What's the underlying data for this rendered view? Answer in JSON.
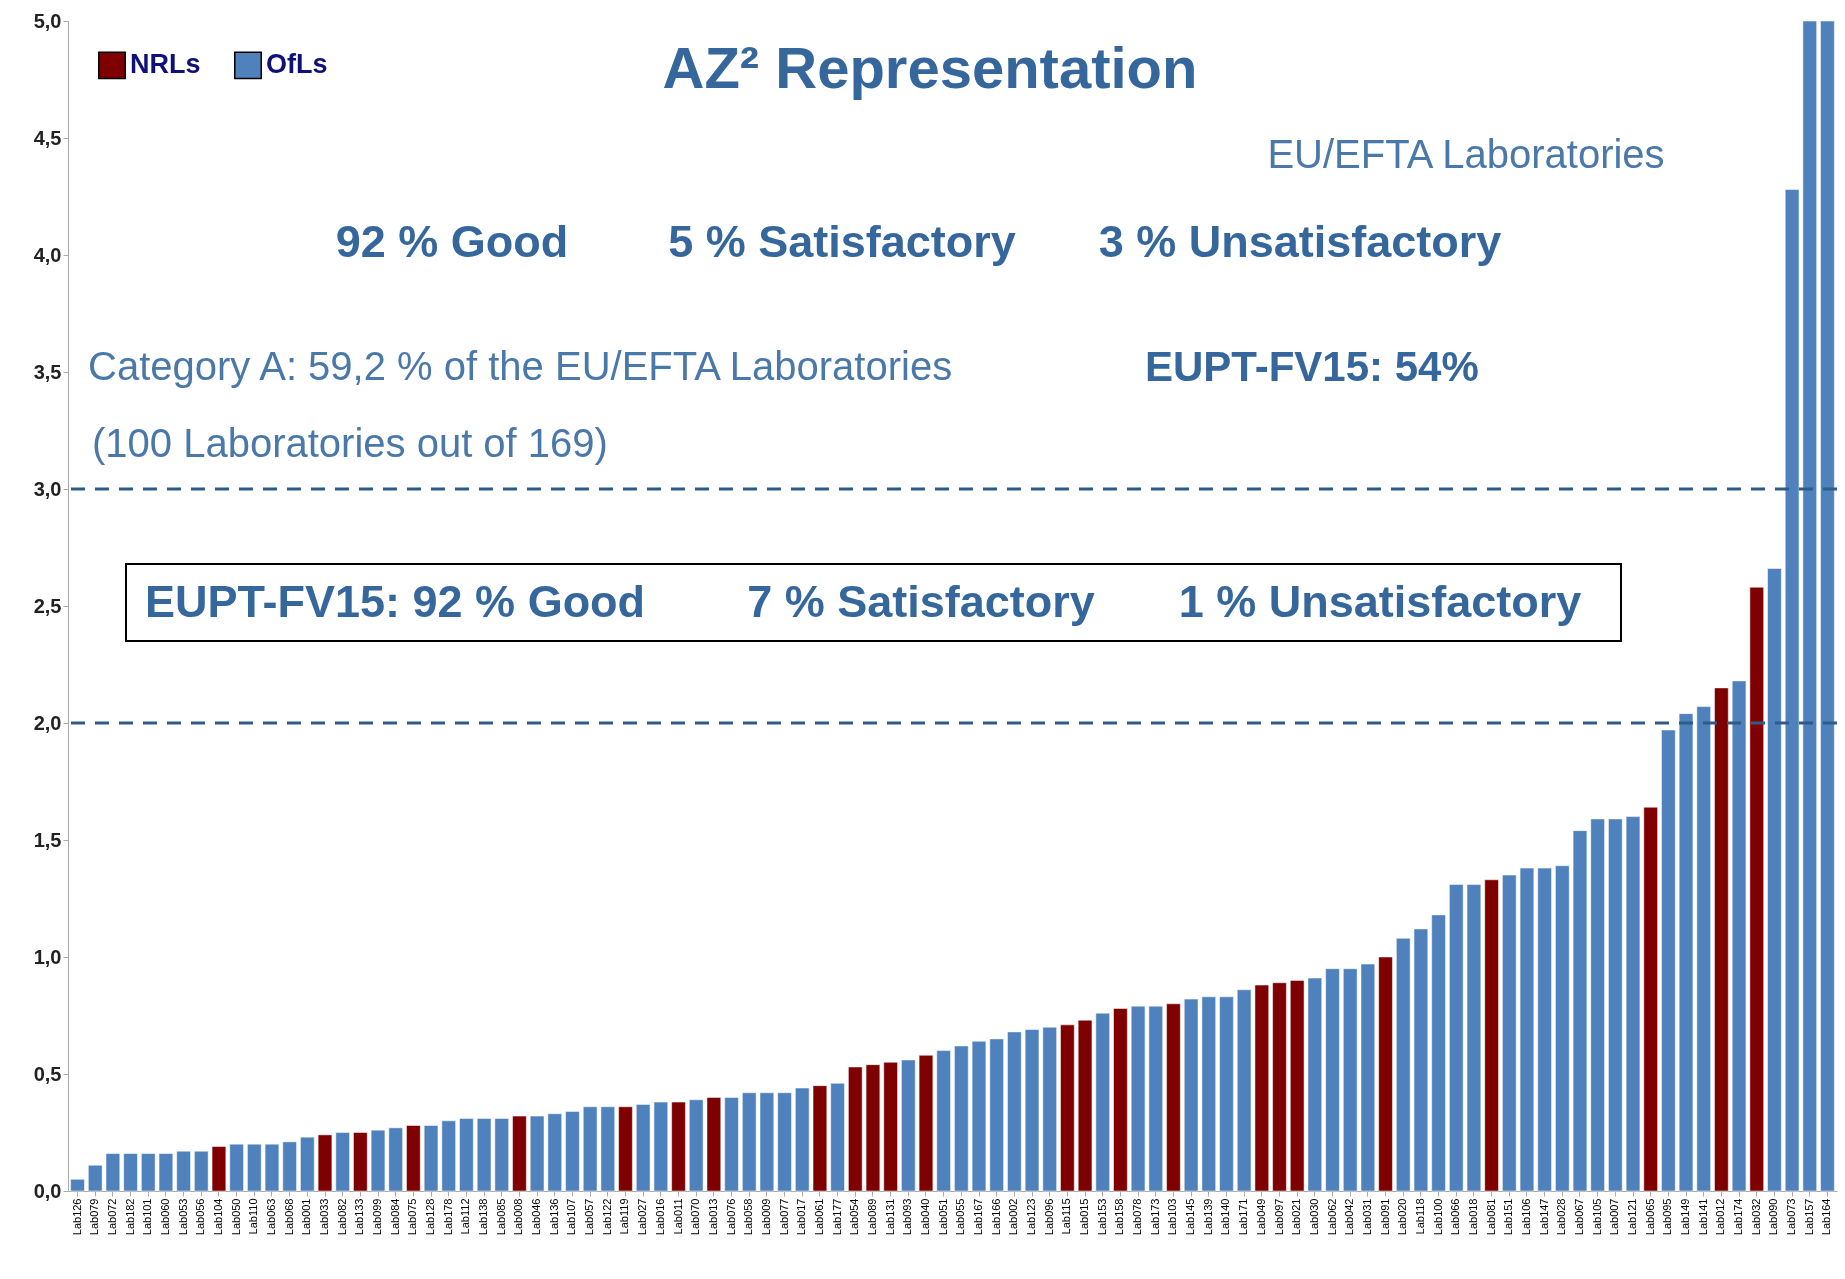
{
  "chart_data": {
    "type": "bar",
    "title": "AZ² Representation",
    "categories": [
      "Lab126",
      "Lab079",
      "Lab072",
      "Lab182",
      "Lab101",
      "Lab060",
      "Lab053",
      "Lab056",
      "Lab104",
      "Lab050",
      "Lab110",
      "Lab063",
      "Lab068",
      "Lab001",
      "Lab033",
      "Lab082",
      "Lab133",
      "Lab099",
      "Lab084",
      "Lab075",
      "Lab128",
      "Lab178",
      "Lab112",
      "Lab138",
      "Lab085",
      "Lab008",
      "Lab046",
      "Lab136",
      "Lab107",
      "Lab057",
      "Lab122",
      "Lab119",
      "Lab027",
      "Lab016",
      "Lab011",
      "Lab070",
      "Lab013",
      "Lab076",
      "Lab058",
      "Lab009",
      "Lab077",
      "Lab017",
      "Lab061",
      "Lab177",
      "Lab054",
      "Lab089",
      "Lab131",
      "Lab093",
      "Lab040",
      "Lab051",
      "Lab055",
      "Lab167",
      "Lab166",
      "Lab002",
      "Lab123",
      "Lab096",
      "Lab115",
      "Lab015",
      "Lab153",
      "Lab158",
      "Lab078",
      "Lab173",
      "Lab103",
      "Lab145",
      "Lab139",
      "Lab140",
      "Lab171",
      "Lab049",
      "Lab097",
      "Lab021",
      "Lab030",
      "Lab062",
      "Lab042",
      "Lab031",
      "Lab091",
      "Lab020",
      "Lab118",
      "Lab100",
      "Lab066",
      "Lab018",
      "Lab081",
      "Lab151",
      "Lab106",
      "Lab147",
      "Lab028",
      "Lab067",
      "Lab105",
      "Lab007",
      "Lab121",
      "Lab065",
      "Lab095",
      "Lab149",
      "Lab141",
      "Lab012",
      "Lab174",
      "Lab032",
      "Lab090",
      "Lab073",
      "Lab157",
      "Lab164"
    ],
    "series": [
      {
        "name": "NRLs",
        "color": "#7f0000",
        "values": [
          null,
          null,
          null,
          null,
          null,
          null,
          null,
          null,
          0.19,
          null,
          null,
          null,
          null,
          null,
          0.24,
          null,
          0.25,
          null,
          null,
          0.28,
          null,
          null,
          null,
          null,
          null,
          0.32,
          null,
          null,
          null,
          null,
          null,
          0.36,
          null,
          null,
          0.38,
          null,
          0.4,
          null,
          null,
          null,
          null,
          null,
          0.45,
          null,
          0.53,
          0.54,
          0.55,
          null,
          0.58,
          null,
          null,
          null,
          null,
          null,
          null,
          null,
          0.71,
          0.73,
          null,
          0.78,
          null,
          null,
          0.8,
          null,
          null,
          null,
          null,
          0.88,
          0.89,
          0.9,
          null,
          null,
          null,
          null,
          1.0,
          null,
          null,
          null,
          null,
          null,
          1.33,
          null,
          null,
          null,
          null,
          null,
          null,
          null,
          null,
          1.64,
          null,
          null,
          null,
          2.15,
          null,
          2.58,
          null,
          null,
          null,
          null
        ]
      },
      {
        "name": "OfLs",
        "color": "#4f81bd",
        "values": [
          0.05,
          0.11,
          0.16,
          0.16,
          0.16,
          0.16,
          0.17,
          0.17,
          null,
          0.2,
          0.2,
          0.2,
          0.21,
          0.23,
          null,
          0.25,
          null,
          0.26,
          0.27,
          null,
          0.28,
          0.3,
          0.31,
          0.31,
          0.31,
          null,
          0.32,
          0.33,
          0.34,
          0.36,
          0.36,
          null,
          0.37,
          0.38,
          null,
          0.39,
          null,
          0.4,
          0.42,
          0.42,
          0.42,
          0.44,
          null,
          0.46,
          null,
          null,
          null,
          0.56,
          null,
          0.6,
          0.62,
          0.64,
          0.65,
          0.68,
          0.69,
          0.7,
          null,
          null,
          0.76,
          null,
          0.79,
          0.79,
          null,
          0.82,
          0.83,
          0.83,
          0.86,
          null,
          null,
          null,
          0.91,
          0.95,
          0.95,
          0.97,
          null,
          1.08,
          1.12,
          1.18,
          1.31,
          1.31,
          null,
          1.35,
          1.38,
          1.38,
          1.39,
          1.54,
          1.59,
          1.59,
          1.6,
          null,
          1.97,
          2.04,
          2.07,
          null,
          2.18,
          null,
          2.66,
          4.28,
          5.0,
          5.0
        ]
      }
    ],
    "ylim": [
      0,
      5
    ],
    "yticks": [
      {
        "value": 0,
        "label": "0,0"
      },
      {
        "value": 0.5,
        "label": "0,5"
      },
      {
        "value": 1,
        "label": "1,0"
      },
      {
        "value": 1.5,
        "label": "1,5"
      },
      {
        "value": 2,
        "label": "2,0"
      },
      {
        "value": 2.5,
        "label": "2,5"
      },
      {
        "value": 3,
        "label": "3,0"
      },
      {
        "value": 3.5,
        "label": "3,5"
      },
      {
        "value": 4,
        "label": "4,0"
      },
      {
        "value": 4.5,
        "label": "4,5"
      },
      {
        "value": 5,
        "label": "5,0"
      }
    ],
    "ref_lines": [
      {
        "axis": "y",
        "value": 3,
        "color": "#2e5c8a",
        "line_style": "dashed"
      },
      {
        "axis": "y",
        "value": 2,
        "color": "#2e5c8a",
        "line_style": "dashed"
      }
    ],
    "legend": "top left",
    "grid": false,
    "annotations": [
      "EU/EFTA Laboratories",
      "92 % Good",
      "5 % Satisfactory",
      "3 % Unsatisfactory",
      "Category A: 59,2 % of the EU/EFTA Laboratories",
      "EUPT-FV15: 54% ",
      "(100 Laboratories out of 169)",
      "EUPT-FV15: 92 % Good",
      "7 % Satisfactory",
      "1 % Unsatisfactory"
    ]
  }
}
